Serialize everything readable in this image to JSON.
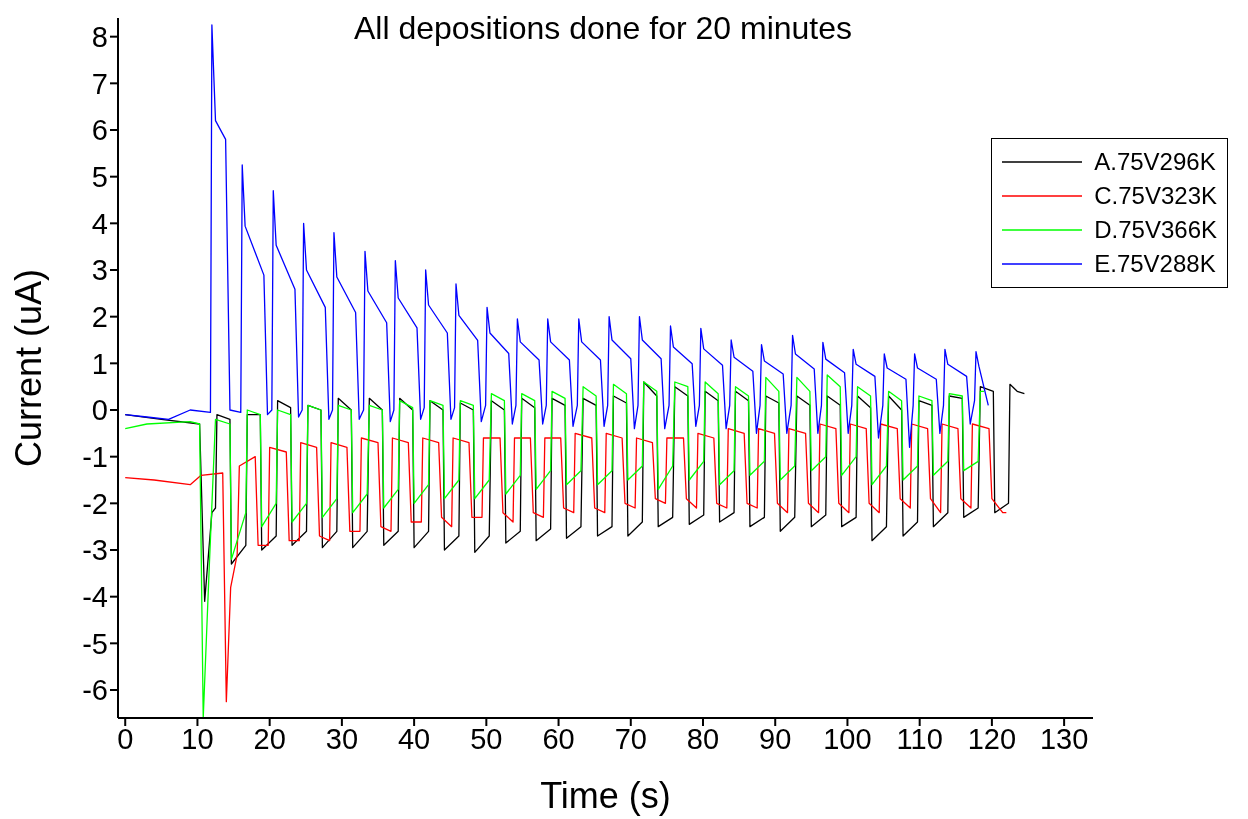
{
  "chart_data": {
    "type": "line",
    "title": "All depositions done for 20 minutes",
    "xlabel": "Time (s)",
    "ylabel": "Current (uA)",
    "xlim": [
      -1,
      134
    ],
    "ylim": [
      -6.6,
      8.4
    ],
    "xticks": [
      0,
      10,
      20,
      30,
      40,
      50,
      60,
      70,
      80,
      90,
      100,
      110,
      120,
      130
    ],
    "yticks": [
      -6,
      -5,
      -4,
      -3,
      -2,
      -1,
      0,
      1,
      2,
      3,
      4,
      5,
      6,
      7,
      8
    ],
    "legend": "top right",
    "line_style": "solid",
    "marker": "none",
    "series": [
      {
        "name": "A.75V296K",
        "color": "#000000",
        "x": [
          0,
          5,
          10.3,
          11.0,
          12.0,
          12.5,
          12.7,
          14.5,
          14.7,
          16.7,
          16.9,
          18.7,
          18.9,
          20.9,
          21.1,
          22.9,
          23.1,
          25.1,
          25.3,
          27.1,
          27.3,
          29.3,
          29.5,
          31.3,
          31.5,
          33.5,
          33.8,
          35.6,
          35.8,
          37.8,
          38.0,
          39.8,
          40.0,
          42.0,
          42.2,
          44.0,
          44.2,
          46.2,
          46.4,
          48.2,
          48.4,
          50.4,
          50.7,
          52.5,
          52.7,
          54.7,
          54.9,
          56.7,
          56.9,
          58.9,
          59.1,
          60.9,
          61.1,
          63.1,
          63.4,
          65.2,
          65.4,
          67.4,
          67.6,
          69.4,
          69.6,
          71.6,
          71.8,
          73.6,
          73.8,
          75.8,
          76.1,
          77.9,
          78.1,
          80.1,
          80.3,
          82.1,
          82.3,
          84.3,
          84.5,
          86.3,
          86.5,
          88.5,
          88.7,
          90.5,
          90.7,
          92.7,
          93.0,
          94.8,
          95.0,
          97.0,
          97.2,
          99.0,
          99.2,
          101.2,
          101.4,
          103.2,
          103.4,
          105.4,
          105.7,
          107.5,
          107.7,
          109.7,
          109.9,
          111.7,
          111.9,
          113.9,
          114.1,
          115.9,
          116.1,
          118.1,
          118.4,
          120.2,
          120.4,
          122.3,
          122.5,
          123.5,
          124.5
        ],
        "values": [
          -0.1,
          -0.2,
          -0.3,
          -4.1,
          -2.2,
          -2.1,
          -0.1,
          -0.2,
          -3.3,
          -2.9,
          -0.1,
          -0.1,
          -3.0,
          -2.7,
          0.2,
          0.05,
          -2.9,
          -2.6,
          0.1,
          0,
          -2.95,
          -2.6,
          0.25,
          0,
          -2.95,
          -2.6,
          0.25,
          0,
          -2.9,
          -2.6,
          0.25,
          0,
          -2.95,
          -2.6,
          0.2,
          0,
          -3.0,
          -2.7,
          0.15,
          0,
          -3.05,
          -2.7,
          0.2,
          0,
          -2.85,
          -2.6,
          0.25,
          0.05,
          -2.8,
          -2.55,
          0.25,
          0.1,
          -2.75,
          -2.5,
          0.25,
          0.1,
          -2.7,
          -2.5,
          0.3,
          0.15,
          -2.7,
          -2.4,
          0.6,
          0.3,
          -2.5,
          -2.3,
          0.5,
          0.3,
          -2.45,
          -2.25,
          0.4,
          0.2,
          -2.4,
          -2.2,
          0.4,
          0.2,
          -2.5,
          -2.3,
          0.3,
          0.15,
          -2.6,
          -2.3,
          0.3,
          0.1,
          -2.5,
          -2.25,
          0.3,
          0.1,
          -2.5,
          -2.3,
          0.3,
          0.05,
          -2.8,
          -2.5,
          0.3,
          0,
          -2.7,
          -2.4,
          0.2,
          0.1,
          -2.5,
          -2.2,
          0.3,
          0.25,
          -2.3,
          -2.1,
          0.5,
          0.4,
          -2.2,
          -2.0,
          0.55,
          0.4,
          0.35
        ]
      },
      {
        "name": "C.75V323K",
        "color": "#ff0000",
        "x": [
          0,
          4,
          9,
          10.5,
          13.5,
          14.0,
          14.6,
          15.5,
          15.8,
          18.0,
          18.4,
          19.8,
          20.0,
          22.3,
          22.7,
          24.1,
          24.3,
          26.5,
          26.9,
          28.3,
          28.5,
          30.7,
          31.1,
          32.5,
          32.7,
          35.0,
          35.4,
          36.8,
          37.0,
          39.2,
          39.6,
          41.0,
          41.2,
          43.4,
          43.8,
          45.2,
          45.4,
          47.6,
          48.0,
          49.4,
          49.6,
          51.9,
          52.3,
          53.7,
          53.9,
          56.1,
          56.5,
          57.9,
          58.1,
          60.3,
          60.7,
          62.1,
          62.3,
          64.6,
          65.0,
          66.4,
          66.6,
          68.8,
          69.2,
          70.6,
          70.8,
          73.0,
          73.4,
          74.8,
          75.0,
          77.3,
          77.7,
          79.1,
          79.3,
          81.5,
          81.9,
          83.3,
          83.5,
          85.7,
          86.1,
          87.5,
          87.7,
          89.9,
          90.3,
          91.7,
          91.9,
          94.2,
          94.6,
          96.0,
          96.2,
          98.4,
          98.8,
          100.2,
          100.4,
          102.6,
          103.0,
          104.4,
          104.6,
          106.9,
          107.3,
          108.7,
          108.9,
          111.1,
          111.5,
          112.9,
          113.1,
          115.3,
          115.7,
          117.1,
          117.3,
          119.6,
          120.0,
          121.5,
          122.0
        ],
        "values": [
          -1.45,
          -1.5,
          -1.6,
          -1.4,
          -1.35,
          -6.25,
          -3.8,
          -3.1,
          -1.2,
          -1.0,
          -2.9,
          -2.9,
          -0.8,
          -0.9,
          -2.8,
          -2.8,
          -0.7,
          -0.8,
          -2.7,
          -2.8,
          -0.7,
          -0.8,
          -2.6,
          -2.6,
          -0.6,
          -0.7,
          -2.5,
          -2.6,
          -0.6,
          -0.7,
          -2.4,
          -2.4,
          -0.6,
          -0.7,
          -2.3,
          -2.5,
          -0.6,
          -0.7,
          -2.3,
          -2.3,
          -0.6,
          -0.6,
          -2.2,
          -2.4,
          -0.6,
          -0.6,
          -2.2,
          -2.3,
          -0.6,
          -0.6,
          -2.1,
          -2.2,
          -0.5,
          -0.6,
          -2.1,
          -2.2,
          -0.5,
          -0.6,
          -2.0,
          -2.1,
          -0.6,
          -0.7,
          -1.9,
          -2.0,
          -0.6,
          -0.6,
          -1.9,
          -2.1,
          -0.5,
          -0.6,
          -2.0,
          -2.1,
          -0.4,
          -0.5,
          -2.0,
          -2.1,
          -0.4,
          -0.5,
          -2.0,
          -2.2,
          -0.4,
          -0.5,
          -2.0,
          -2.2,
          -0.3,
          -0.4,
          -2.0,
          -2.2,
          -0.3,
          -0.4,
          -2.0,
          -2.2,
          -0.3,
          -0.4,
          -1.9,
          -2.1,
          -0.3,
          -0.4,
          -1.9,
          -2.2,
          -0.3,
          -0.4,
          -1.9,
          -2.1,
          -0.3,
          -0.4,
          -1.9,
          -2.2,
          -2.2
        ]
      },
      {
        "name": "D.75V366K",
        "color": "#00ff00",
        "x": [
          0,
          3,
          9,
          10.3,
          10.8,
          11.6,
          12.5,
          14.5,
          14.7,
          16.7,
          16.9,
          18.7,
          18.9,
          20.9,
          21.1,
          22.9,
          23.1,
          25.1,
          25.3,
          27.1,
          27.3,
          29.3,
          29.5,
          31.3,
          31.5,
          33.5,
          33.8,
          35.6,
          35.8,
          37.8,
          38.0,
          39.8,
          40.0,
          42.0,
          42.2,
          44.0,
          44.2,
          46.2,
          46.4,
          48.2,
          48.4,
          50.4,
          50.7,
          52.5,
          52.7,
          54.7,
          54.9,
          56.7,
          56.9,
          58.9,
          59.1,
          60.9,
          61.1,
          63.1,
          63.4,
          65.2,
          65.4,
          67.4,
          67.6,
          69.4,
          69.6,
          71.6,
          71.8,
          73.6,
          73.8,
          75.8,
          76.1,
          77.9,
          78.1,
          80.1,
          80.3,
          82.1,
          82.3,
          84.3,
          84.5,
          86.3,
          86.5,
          88.5,
          88.7,
          90.5,
          90.7,
          92.7,
          93.0,
          94.8,
          95.0,
          97.0,
          97.2,
          99.0,
          99.2,
          101.2,
          101.4,
          103.2,
          103.4,
          105.4,
          105.7,
          107.5,
          107.7,
          109.7,
          109.9,
          111.7,
          111.9,
          113.9,
          114.1,
          115.9,
          116.1,
          118.1,
          118.4,
          118.9
        ],
        "values": [
          -0.4,
          -0.3,
          -0.25,
          -0.3,
          -6.6,
          -3.5,
          -0.2,
          -0.3,
          -3.2,
          -2.2,
          0.0,
          -0.1,
          -2.5,
          -2.0,
          0.0,
          -0.1,
          -2.4,
          -2.0,
          0.1,
          0,
          -2.3,
          -1.9,
          0.1,
          0,
          -2.2,
          -1.8,
          0.1,
          0,
          -2.1,
          -1.7,
          0.2,
          0.05,
          -2.0,
          -1.6,
          0.2,
          0.1,
          -1.9,
          -1.5,
          0.2,
          0.1,
          -1.9,
          -1.5,
          0.35,
          0.2,
          -1.8,
          -1.4,
          0.35,
          0.2,
          -1.7,
          -1.3,
          0.4,
          0.25,
          -1.6,
          -1.3,
          0.5,
          0.3,
          -1.6,
          -1.3,
          0.55,
          0.35,
          -1.5,
          -1.2,
          0.6,
          0.4,
          -1.7,
          -1.2,
          0.6,
          0.5,
          -1.5,
          -1.1,
          0.6,
          0.35,
          -1.6,
          -1.3,
          0.5,
          0.3,
          -1.4,
          -1.1,
          0.7,
          0.4,
          -1.5,
          -1.2,
          0.7,
          0.4,
          -1.3,
          -1.0,
          0.75,
          0.5,
          -1.4,
          -1.0,
          0.5,
          0.3,
          -1.6,
          -1.2,
          0.4,
          0.2,
          -1.5,
          -1.2,
          0.3,
          0.2,
          -1.4,
          -1.1,
          0.35,
          0.3,
          -1.3,
          -1.1,
          0.4,
          0.4
        ]
      },
      {
        "name": "E.75V288K",
        "color": "#0000ff",
        "x": [
          0,
          3,
          6,
          9,
          11.8,
          12.0,
          12.5,
          13.9,
          14.5,
          16.0,
          16.2,
          16.6,
          19.2,
          19.7,
          20.3,
          20.5,
          20.9,
          23.5,
          24.0,
          24.5,
          24.7,
          25.1,
          27.7,
          28.2,
          28.7,
          28.9,
          29.3,
          31.9,
          32.4,
          33.0,
          33.2,
          33.6,
          36.2,
          36.7,
          37.2,
          37.4,
          37.8,
          40.4,
          40.9,
          41.4,
          41.6,
          42.0,
          44.6,
          45.1,
          45.6,
          45.8,
          46.2,
          48.8,
          49.3,
          49.9,
          50.1,
          50.5,
          53.1,
          53.6,
          54.1,
          54.3,
          54.7,
          57.3,
          57.8,
          58.3,
          58.5,
          58.9,
          61.5,
          62.0,
          62.6,
          62.8,
          63.2,
          65.8,
          66.3,
          66.8,
          67.0,
          67.4,
          70.0,
          70.5,
          71.0,
          71.2,
          71.6,
          74.2,
          74.7,
          75.3,
          75.5,
          75.9,
          78.5,
          79.0,
          79.5,
          79.7,
          80.1,
          82.7,
          83.2,
          83.7,
          83.9,
          84.3,
          86.9,
          87.4,
          87.9,
          88.1,
          88.5,
          91.1,
          91.6,
          92.2,
          92.4,
          92.8,
          95.4,
          95.9,
          96.4,
          96.6,
          97.0,
          99.6,
          100.1,
          100.6,
          100.8,
          101.2,
          103.8,
          104.3,
          104.9,
          105.1,
          105.5,
          108.1,
          108.6,
          109.1,
          109.3,
          109.7,
          112.3,
          112.8,
          113.3,
          113.5,
          113.9,
          116.5,
          117.0,
          117.6,
          117.8,
          118.2,
          119.5
        ],
        "values": [
          -0.1,
          -0.15,
          -0.2,
          0,
          -0.05,
          8.25,
          6.2,
          5.8,
          0,
          -0.05,
          5.25,
          3.94,
          2.89,
          -0.1,
          0,
          4.7,
          3.53,
          2.59,
          -0.15,
          0,
          4.0,
          3.0,
          2.2,
          -0.2,
          0,
          3.8,
          2.85,
          2.09,
          -0.2,
          0,
          3.4,
          2.55,
          1.87,
          -0.25,
          0,
          3.2,
          2.4,
          1.76,
          -0.2,
          0.05,
          3.0,
          2.25,
          1.65,
          -0.2,
          0.05,
          2.7,
          2.03,
          1.49,
          -0.25,
          0.1,
          2.2,
          1.65,
          1.21,
          -0.3,
          0.1,
          1.95,
          1.46,
          1.07,
          -0.3,
          0.1,
          1.95,
          1.46,
          1.07,
          -0.35,
          0.1,
          1.95,
          1.46,
          1.07,
          -0.35,
          0.1,
          2.0,
          1.5,
          1.1,
          -0.4,
          0.1,
          2.0,
          1.5,
          1.1,
          -0.4,
          0.1,
          1.8,
          1.35,
          0.99,
          -0.35,
          0.1,
          1.75,
          1.31,
          0.96,
          -0.4,
          0.1,
          1.5,
          1.13,
          0.83,
          -0.5,
          0.1,
          1.4,
          1.05,
          0.77,
          -0.5,
          0.1,
          1.6,
          1.2,
          0.88,
          -0.5,
          0.1,
          1.45,
          1.09,
          0.8,
          -0.5,
          0.1,
          1.3,
          0.98,
          0.72,
          -0.6,
          0.1,
          1.2,
          0.9,
          0.66,
          -0.8,
          0.1,
          1.2,
          0.9,
          0.66,
          -0.5,
          0.1,
          1.3,
          0.98,
          0.72,
          -0.3,
          0.2,
          1.25,
          0.94,
          0.1
        ]
      }
    ]
  }
}
